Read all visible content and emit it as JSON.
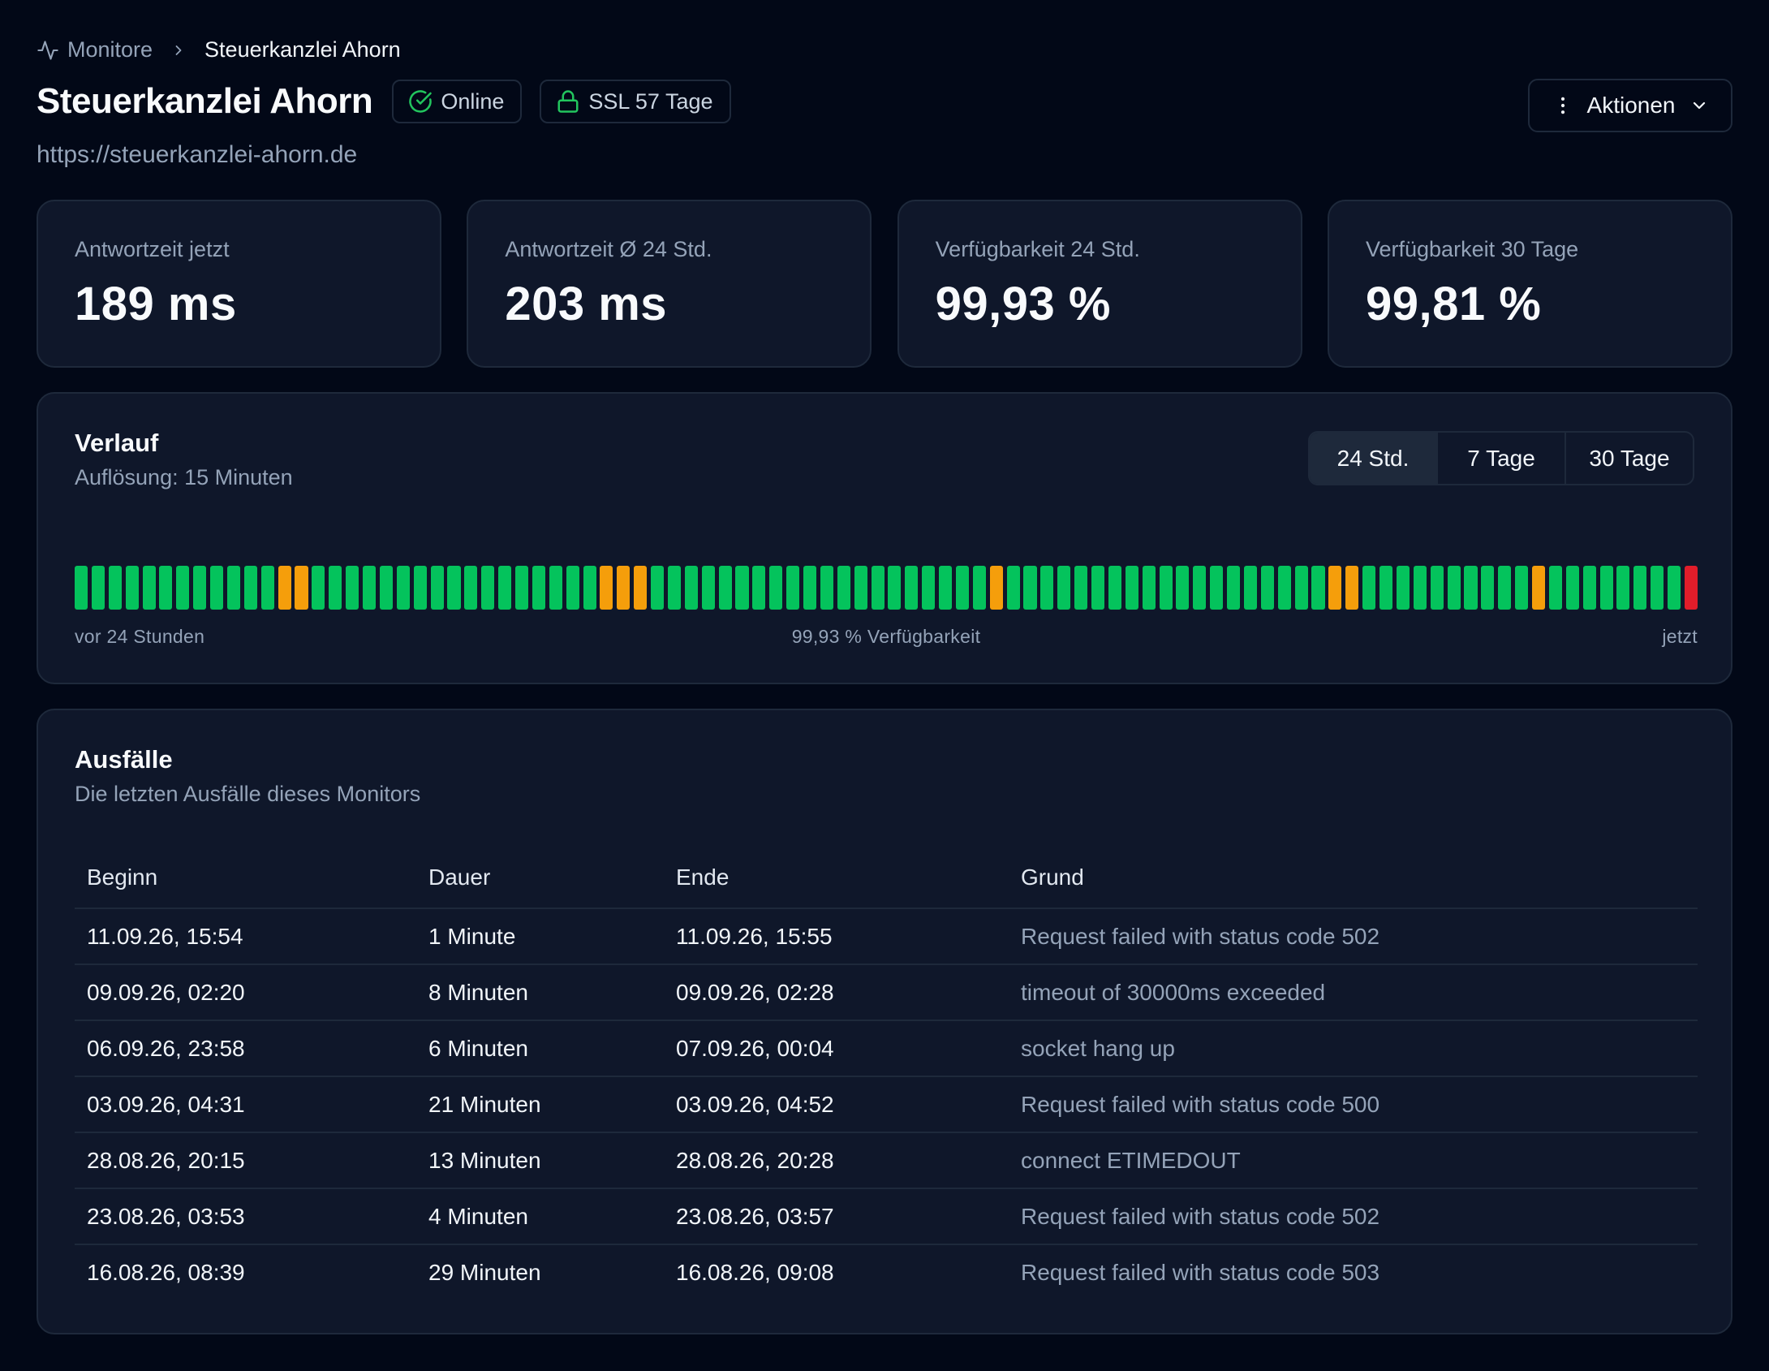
{
  "breadcrumb": {
    "root": "Monitore",
    "current": "Steuerkanzlei Ahorn"
  },
  "header": {
    "title": "Steuerkanzlei Ahorn",
    "status_badge": "Online",
    "ssl_badge": "SSL 57 Tage",
    "url": "https://steuerkanzlei-ahorn.de",
    "actions_label": "Aktionen"
  },
  "stats": [
    {
      "label": "Antwortzeit jetzt",
      "value": "189 ms"
    },
    {
      "label": "Antwortzeit Ø 24 Std.",
      "value": "203 ms"
    },
    {
      "label": "Verfügbarkeit 24 Std.",
      "value": "99,93 %"
    },
    {
      "label": "Verfügbarkeit 30 Tage",
      "value": "99,81 %"
    }
  ],
  "history": {
    "title": "Verlauf",
    "subtitle": "Auflösung: 15 Minuten",
    "ranges": [
      "24 Std.",
      "7 Tage",
      "30 Tage"
    ],
    "active_range": "24 Std.",
    "label_start": "vor 24 Stunden",
    "label_center": "99,93 % Verfügbarkeit",
    "label_end": "jetzt",
    "bar_count": 96,
    "degraded_indices": [
      12,
      13,
      31,
      32,
      33,
      54,
      74,
      75,
      86
    ],
    "down_indices": [
      95
    ],
    "colors": {
      "up": "#04c35c",
      "degraded": "#f59e0b",
      "down": "#e11d2a"
    }
  },
  "outages": {
    "title": "Ausfälle",
    "subtitle": "Die letzten Ausfälle dieses Monitors",
    "columns": [
      "Beginn",
      "Dauer",
      "Ende",
      "Grund"
    ],
    "rows": [
      [
        "11.09.26, 15:54",
        "1 Minute",
        "11.09.26, 15:55",
        "Request failed with status code 502"
      ],
      [
        "09.09.26, 02:20",
        "8 Minuten",
        "09.09.26, 02:28",
        "timeout of 30000ms exceeded"
      ],
      [
        "06.09.26, 23:58",
        "6 Minuten",
        "07.09.26, 00:04",
        "socket hang up"
      ],
      [
        "03.09.26, 04:31",
        "21 Minuten",
        "03.09.26, 04:52",
        "Request failed with status code 500"
      ],
      [
        "28.08.26, 20:15",
        "13 Minuten",
        "28.08.26, 20:28",
        "connect ETIMEDOUT"
      ],
      [
        "23.08.26, 03:53",
        "4 Minuten",
        "23.08.26, 03:57",
        "Request failed with status code 502"
      ],
      [
        "16.08.26, 08:39",
        "29 Minuten",
        "16.08.26, 09:08",
        "Request failed with status code 503"
      ]
    ]
  },
  "accent": {
    "success": "#22c55e"
  }
}
